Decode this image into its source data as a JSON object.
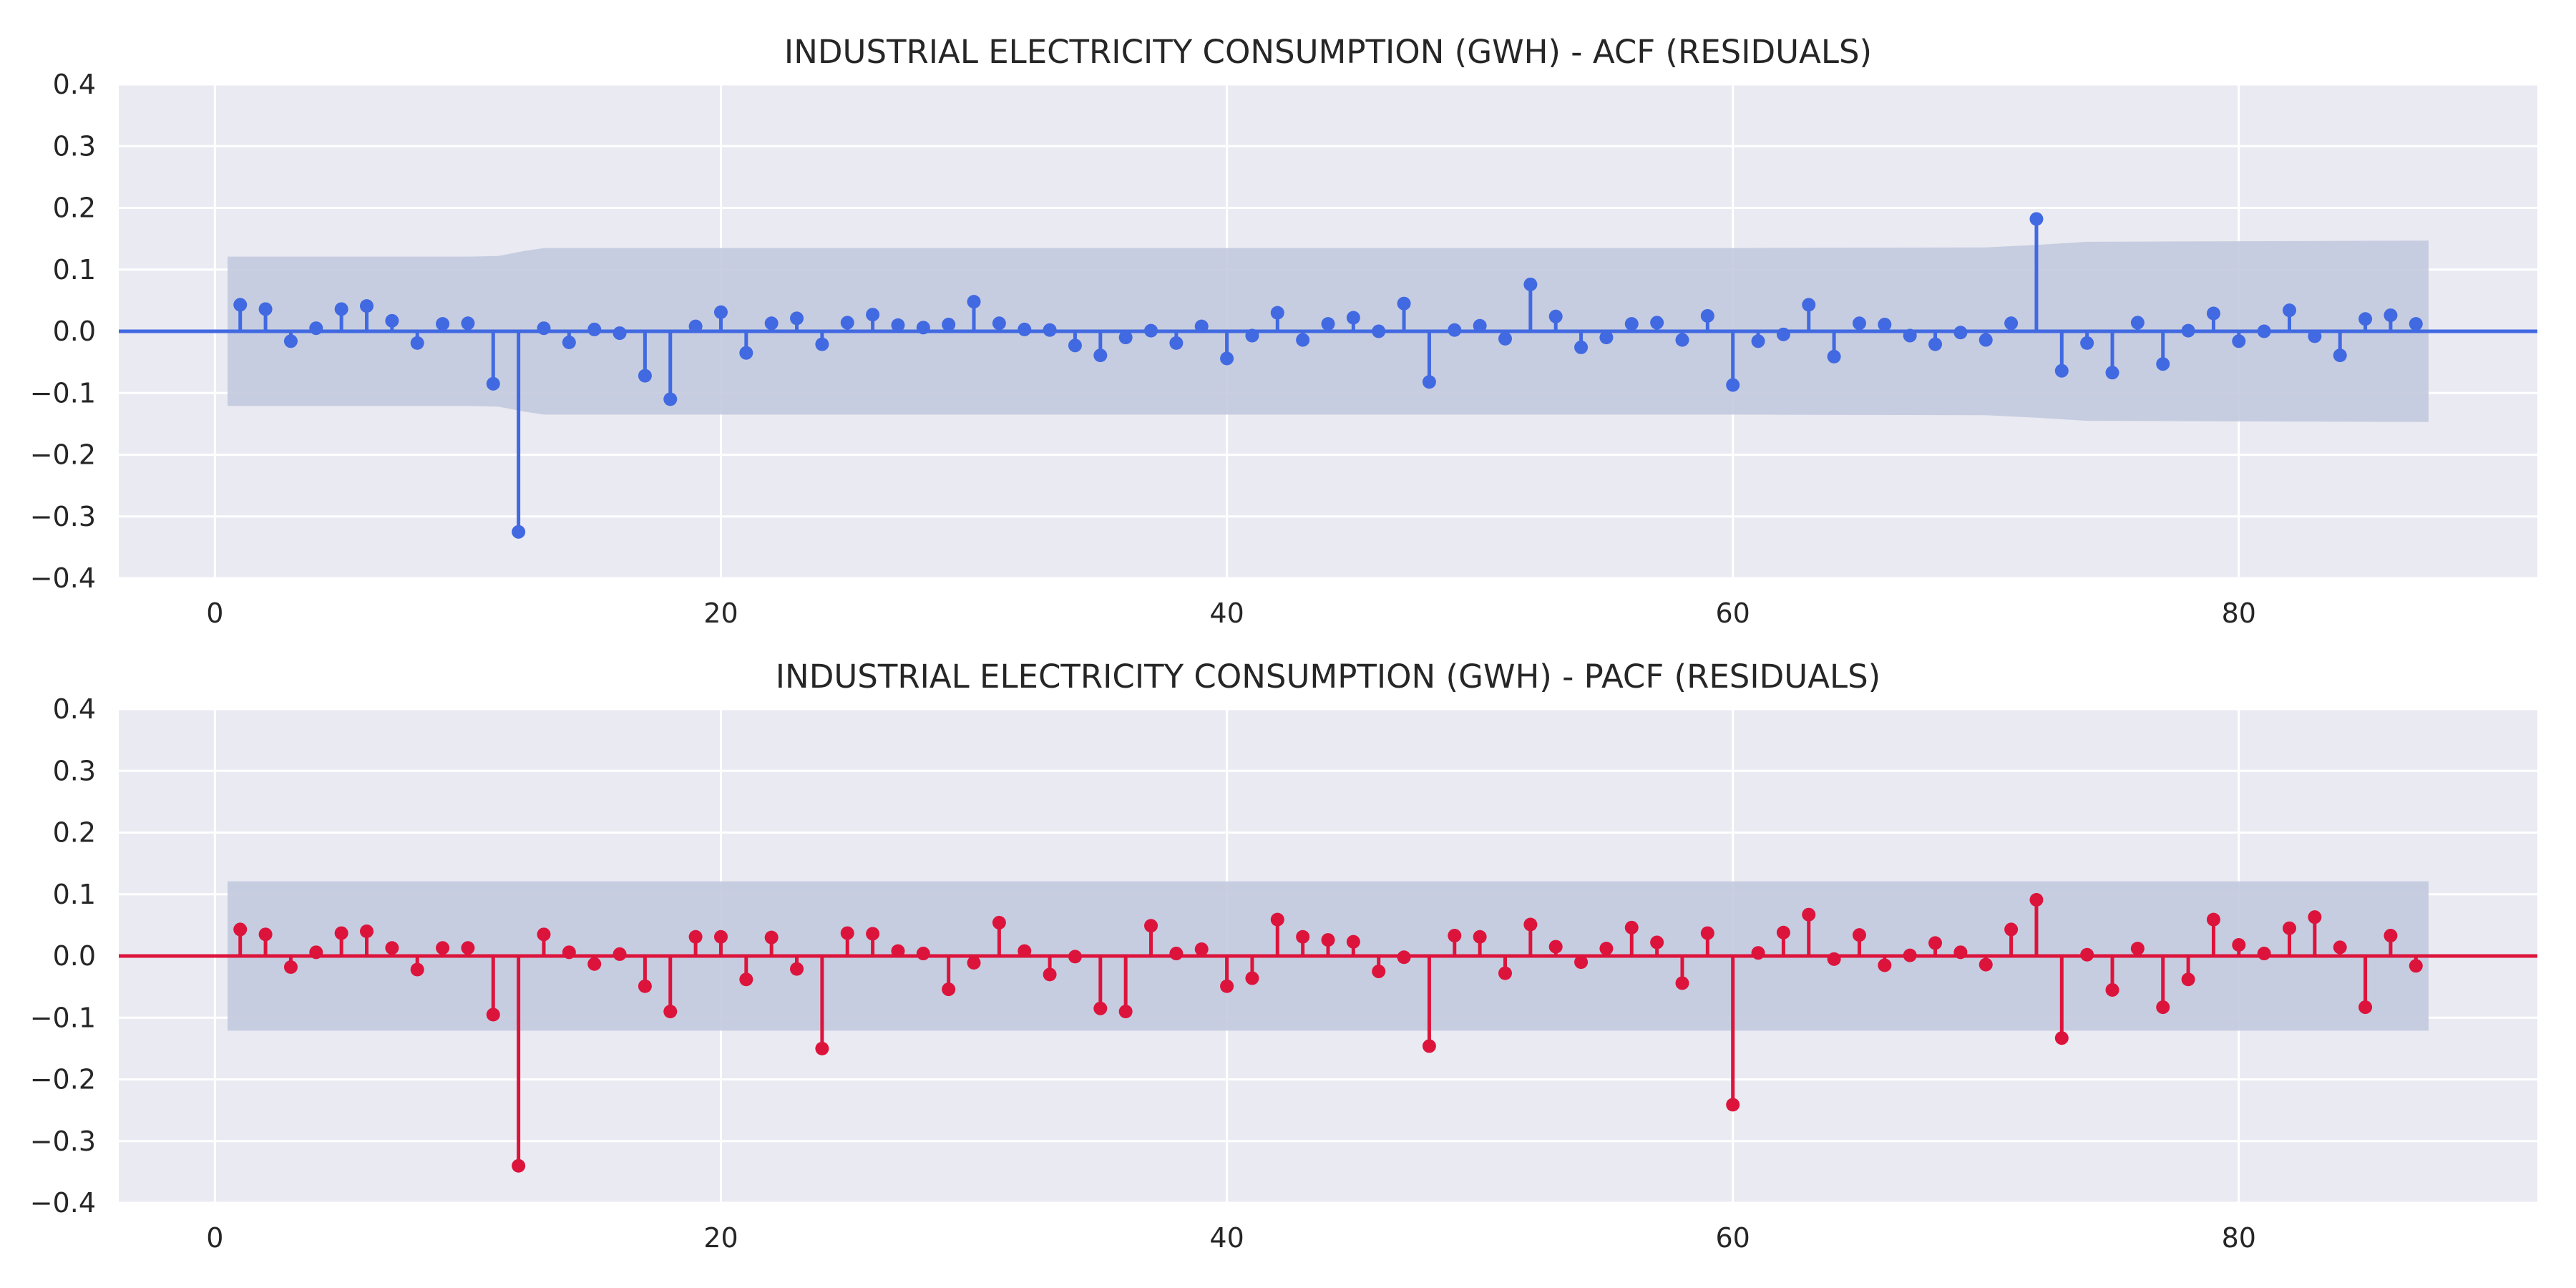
{
  "colors": {
    "acf": "#4169e1",
    "pacf": "#dc143c",
    "band": "#c3cade",
    "plot_bg": "#eaeaf2",
    "grid": "#ffffff"
  },
  "chart_data": [
    {
      "type": "stem",
      "title": "INDUSTRIAL ELECTRICITY CONSUMPTION (GWH) - ACF (RESIDUALS)",
      "xlabel": "",
      "ylabel": "",
      "xlim": [
        -3.8,
        91.8
      ],
      "ylim": [
        -0.4,
        0.4
      ],
      "x_ticks": [
        0,
        20,
        40,
        60,
        80
      ],
      "y_ticks": [
        -0.4,
        -0.3,
        -0.2,
        -0.1,
        0.0,
        0.1,
        0.2,
        0.3,
        0.4
      ],
      "y_tick_labels": [
        "−0.4",
        "−0.3",
        "−0.2",
        "−0.1",
        "0.0",
        "0.1",
        "0.2",
        "0.3",
        "0.4"
      ],
      "grid": true,
      "lags": [
        1,
        2,
        3,
        4,
        5,
        6,
        7,
        8,
        9,
        10,
        11,
        12,
        13,
        14,
        15,
        16,
        17,
        18,
        19,
        20,
        21,
        22,
        23,
        24,
        25,
        26,
        27,
        28,
        29,
        30,
        31,
        32,
        33,
        34,
        35,
        36,
        37,
        38,
        39,
        40,
        41,
        42,
        43,
        44,
        45,
        46,
        47,
        48,
        49,
        50,
        51,
        52,
        53,
        54,
        55,
        56,
        57,
        58,
        59,
        60,
        61,
        62,
        63,
        64,
        65,
        66,
        67,
        68,
        69,
        70,
        71,
        72,
        73,
        74,
        75,
        76,
        77,
        78,
        79,
        80,
        81,
        82,
        83,
        84,
        85,
        86,
        87
      ],
      "values": [
        0.043,
        0.036,
        -0.016,
        0.005,
        0.036,
        0.041,
        0.017,
        -0.019,
        0.012,
        0.013,
        -0.085,
        -0.325,
        0.005,
        -0.018,
        0.003,
        -0.003,
        -0.072,
        -0.11,
        0.008,
        0.031,
        -0.035,
        0.013,
        0.021,
        -0.021,
        0.014,
        0.027,
        0.01,
        0.006,
        0.011,
        0.048,
        0.013,
        0.003,
        0.002,
        -0.023,
        -0.039,
        -0.01,
        0.001,
        -0.019,
        0.008,
        -0.044,
        -0.007,
        0.03,
        -0.014,
        0.012,
        0.022,
        0.0,
        0.045,
        -0.082,
        0.002,
        0.009,
        -0.012,
        0.076,
        0.024,
        -0.026,
        -0.01,
        0.012,
        0.014,
        -0.014,
        0.025,
        -0.087,
        -0.016,
        -0.005,
        0.043,
        -0.041,
        0.013,
        0.011,
        -0.007,
        -0.021,
        -0.002,
        -0.014,
        0.013,
        0.182,
        -0.064,
        -0.019,
        -0.067,
        0.014,
        -0.053,
        0.001,
        0.029,
        -0.016,
        0.0,
        0.034,
        -0.008,
        -0.039,
        0.02,
        0.026,
        0.012
      ],
      "confint": {
        "x": [
          0.5,
          10,
          11.2,
          12.2,
          13,
          20,
          40,
          60,
          70,
          72,
          74,
          87.5
        ],
        "upper": [
          0.121,
          0.121,
          0.122,
          0.13,
          0.135,
          0.135,
          0.135,
          0.135,
          0.136,
          0.14,
          0.145,
          0.147
        ]
      }
    },
    {
      "type": "stem",
      "title": "INDUSTRIAL ELECTRICITY CONSUMPTION (GWH) - PACF (RESIDUALS)",
      "xlabel": "",
      "ylabel": "",
      "xlim": [
        -3.8,
        91.8
      ],
      "ylim": [
        -0.4,
        0.4
      ],
      "x_ticks": [
        0,
        20,
        40,
        60,
        80
      ],
      "y_ticks": [
        -0.4,
        -0.3,
        -0.2,
        -0.1,
        0.0,
        0.1,
        0.2,
        0.3,
        0.4
      ],
      "y_tick_labels": [
        "−0.4",
        "−0.3",
        "−0.2",
        "−0.1",
        "0.0",
        "0.1",
        "0.2",
        "0.3",
        "0.4"
      ],
      "grid": true,
      "lags": [
        1,
        2,
        3,
        4,
        5,
        6,
        7,
        8,
        9,
        10,
        11,
        12,
        13,
        14,
        15,
        16,
        17,
        18,
        19,
        20,
        21,
        22,
        23,
        24,
        25,
        26,
        27,
        28,
        29,
        30,
        31,
        32,
        33,
        34,
        35,
        36,
        37,
        38,
        39,
        40,
        41,
        42,
        43,
        44,
        45,
        46,
        47,
        48,
        49,
        50,
        51,
        52,
        53,
        54,
        55,
        56,
        57,
        58,
        59,
        60,
        61,
        62,
        63,
        64,
        65,
        66,
        67,
        68,
        69,
        70,
        71,
        72,
        73,
        74,
        75,
        76,
        77,
        78,
        79,
        80,
        81,
        82,
        83,
        84,
        85,
        86,
        87
      ],
      "values": [
        0.043,
        0.035,
        -0.018,
        0.006,
        0.037,
        0.04,
        0.013,
        -0.022,
        0.013,
        0.013,
        -0.095,
        -0.34,
        0.035,
        0.006,
        -0.013,
        0.003,
        -0.049,
        -0.09,
        0.031,
        0.031,
        -0.038,
        0.03,
        -0.021,
        -0.15,
        0.037,
        0.036,
        0.008,
        0.004,
        -0.054,
        -0.011,
        0.054,
        0.008,
        -0.03,
        -0.001,
        -0.085,
        -0.09,
        0.049,
        0.004,
        0.011,
        -0.049,
        -0.036,
        0.059,
        0.031,
        0.026,
        0.023,
        -0.025,
        -0.002,
        -0.146,
        0.033,
        0.031,
        -0.028,
        0.051,
        0.015,
        -0.01,
        0.012,
        0.046,
        0.022,
        -0.044,
        0.037,
        -0.241,
        0.005,
        0.038,
        0.067,
        -0.005,
        0.034,
        -0.015,
        0.001,
        0.021,
        0.006,
        -0.014,
        0.043,
        0.091,
        -0.133,
        0.002,
        -0.055,
        0.012,
        -0.083,
        -0.038,
        0.059,
        0.018,
        0.004,
        0.045,
        0.063,
        0.014,
        -0.083,
        0.033,
        -0.016
      ],
      "confint": {
        "x": [
          0.5,
          87.5
        ],
        "upper": [
          0.121,
          0.121
        ]
      }
    }
  ]
}
